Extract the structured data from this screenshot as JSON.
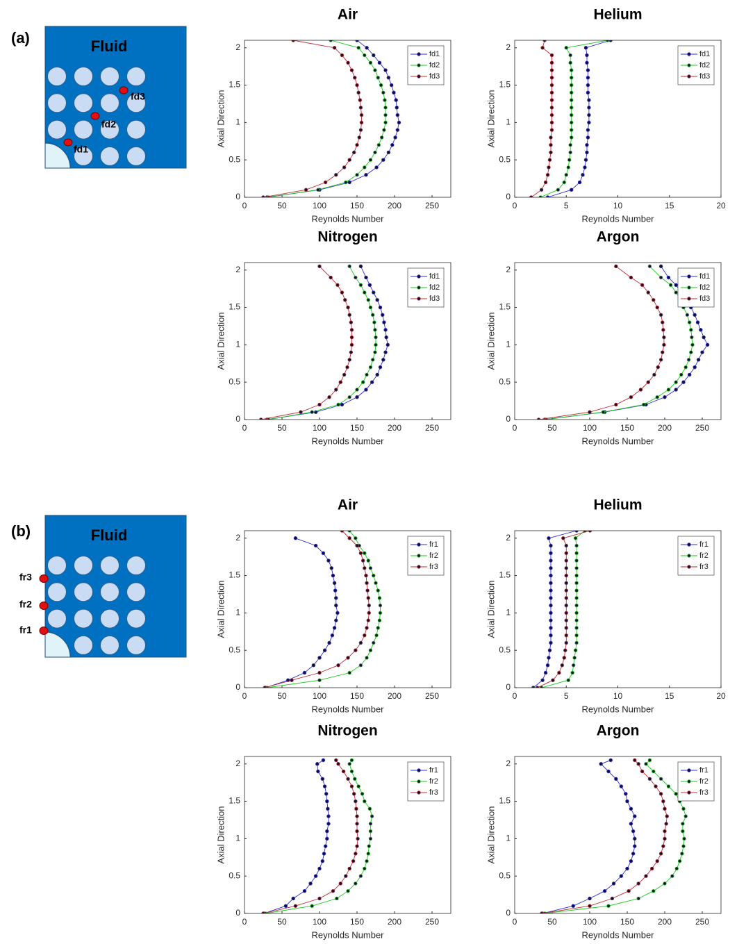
{
  "panels": [
    {
      "label": "(a)",
      "diagram": {
        "title": "Fluid",
        "points": [
          "fd1",
          "fd2",
          "fd3"
        ]
      }
    },
    {
      "label": "(b)",
      "diagram": {
        "title": "Fluid",
        "points": [
          "fr1",
          "fr2",
          "fr3"
        ]
      }
    }
  ],
  "chart_data": [
    {
      "type": "line",
      "title": "Air",
      "xlabel": "Reynolds Number",
      "ylabel": "Axial Direction",
      "y": [
        0,
        0.1,
        0.2,
        0.3,
        0.4,
        0.5,
        0.6,
        0.7,
        0.8,
        0.9,
        1,
        1.1,
        1.2,
        1.3,
        1.4,
        1.5,
        1.6,
        1.7,
        1.8,
        1.9,
        2,
        2.1
      ],
      "series": [
        {
          "name": "fd1",
          "color": "#2b2bd6",
          "values": [
            30,
            100,
            140,
            162,
            176,
            185,
            192,
            197,
            201,
            204,
            206,
            204,
            203,
            202,
            199,
            196,
            192,
            188,
            180,
            172,
            163,
            150
          ]
        },
        {
          "name": "fd2",
          "color": "#19c619",
          "values": [
            32,
            98,
            135,
            150,
            160,
            168,
            174,
            179,
            183,
            186,
            188,
            188,
            188,
            187,
            185,
            182,
            178,
            174,
            168,
            160,
            152,
            115
          ]
        },
        {
          "name": "fd3",
          "color": "#c0282d",
          "values": [
            25,
            82,
            108,
            122,
            133,
            140,
            146,
            150,
            153,
            155,
            156,
            156,
            155,
            154,
            152,
            150,
            147,
            143,
            138,
            130,
            120,
            65
          ]
        }
      ],
      "xlim": [
        0,
        275
      ],
      "xticks": [
        0,
        50,
        100,
        150,
        200,
        250
      ],
      "ylim": [
        0,
        2.1
      ],
      "yticks": [
        0,
        0.5,
        1,
        1.5,
        2
      ],
      "legend": "upper right"
    },
    {
      "type": "line",
      "title": "Helium",
      "xlabel": "Reynolds Number",
      "ylabel": "Axial Direction",
      "y": [
        0,
        0.1,
        0.2,
        0.3,
        0.4,
        0.5,
        0.6,
        0.7,
        0.8,
        0.9,
        1,
        1.1,
        1.2,
        1.3,
        1.4,
        1.5,
        1.6,
        1.7,
        1.8,
        1.9,
        2,
        2.1
      ],
      "series": [
        {
          "name": "fd1",
          "color": "#2b2bd6",
          "values": [
            3.2,
            5.5,
            6.3,
            6.6,
            6.8,
            6.9,
            7.0,
            7.0,
            7.1,
            7.1,
            7.2,
            7.2,
            7.2,
            7.2,
            7.1,
            7.1,
            7.1,
            7.1,
            7.0,
            7.0,
            6.9,
            9.3
          ]
        },
        {
          "name": "fd2",
          "color": "#19c619",
          "values": [
            2.5,
            4.2,
            4.8,
            5.0,
            5.2,
            5.3,
            5.4,
            5.4,
            5.5,
            5.5,
            5.5,
            5.5,
            5.5,
            5.5,
            5.5,
            5.5,
            5.5,
            5.5,
            5.4,
            5.4,
            5.0,
            9.0
          ]
        },
        {
          "name": "fd3",
          "color": "#c0282d",
          "values": [
            1.6,
            2.6,
            3.0,
            3.2,
            3.3,
            3.4,
            3.5,
            3.5,
            3.5,
            3.6,
            3.6,
            3.6,
            3.6,
            3.6,
            3.6,
            3.6,
            3.6,
            3.6,
            3.6,
            3.6,
            2.7,
            2.9
          ]
        }
      ],
      "xlim": [
        0,
        20
      ],
      "xticks": [
        0,
        5,
        10,
        15,
        20
      ],
      "ylim": [
        0,
        2.1
      ],
      "yticks": [
        0,
        0.5,
        1,
        1.5,
        2
      ],
      "legend": "upper right"
    },
    {
      "type": "line",
      "title": "Nitrogen",
      "xlabel": "Reynolds Number",
      "ylabel": "Axial Direction",
      "y": [
        0,
        0.1,
        0.2,
        0.3,
        0.4,
        0.5,
        0.6,
        0.7,
        0.8,
        0.9,
        1,
        1.1,
        1.2,
        1.3,
        1.4,
        1.5,
        1.6,
        1.7,
        1.8,
        1.9,
        2.05
      ],
      "series": [
        {
          "name": "fd1",
          "color": "#2b2bd6",
          "values": [
            30,
            95,
            130,
            150,
            162,
            170,
            177,
            181,
            185,
            188,
            191,
            189,
            188,
            186,
            184,
            181,
            177,
            172,
            167,
            162,
            155
          ]
        },
        {
          "name": "fd2",
          "color": "#19c619",
          "values": [
            32,
            90,
            125,
            140,
            150,
            158,
            163,
            168,
            171,
            174,
            175,
            175,
            174,
            173,
            171,
            168,
            165,
            160,
            155,
            148,
            140
          ]
        },
        {
          "name": "fd3",
          "color": "#c0282d",
          "values": [
            22,
            75,
            100,
            113,
            122,
            128,
            133,
            137,
            140,
            142,
            143,
            143,
            143,
            142,
            140,
            138,
            134,
            130,
            124,
            115,
            100
          ]
        }
      ],
      "xlim": [
        0,
        275
      ],
      "xticks": [
        0,
        50,
        100,
        150,
        200,
        250
      ],
      "ylim": [
        0,
        2.1
      ],
      "yticks": [
        0,
        0.5,
        1,
        1.5,
        2
      ],
      "legend": "upper right"
    },
    {
      "type": "line",
      "title": "Argon",
      "xlabel": "Reynolds Number",
      "ylabel": "Axial Direction",
      "y": [
        0,
        0.1,
        0.2,
        0.3,
        0.4,
        0.5,
        0.6,
        0.7,
        0.8,
        0.9,
        1,
        1.1,
        1.2,
        1.3,
        1.4,
        1.5,
        1.6,
        1.7,
        1.8,
        1.9,
        2.05
      ],
      "series": [
        {
          "name": "fd1",
          "color": "#2b2bd6",
          "values": [
            40,
            120,
            175,
            200,
            215,
            225,
            233,
            240,
            245,
            250,
            257,
            252,
            248,
            244,
            240,
            235,
            228,
            222,
            215,
            205,
            195
          ]
        },
        {
          "name": "fd2",
          "color": "#19c619",
          "values": [
            42,
            118,
            172,
            190,
            205,
            215,
            222,
            228,
            232,
            235,
            237,
            236,
            235,
            233,
            230,
            225,
            222,
            215,
            208,
            195,
            180
          ]
        },
        {
          "name": "fd3",
          "color": "#c0282d",
          "values": [
            32,
            100,
            135,
            155,
            168,
            178,
            186,
            191,
            195,
            197,
            199,
            199,
            198,
            197,
            195,
            190,
            185,
            178,
            170,
            155,
            135
          ]
        }
      ],
      "xlim": [
        0,
        275
      ],
      "xticks": [
        0,
        50,
        100,
        150,
        200,
        250
      ],
      "ylim": [
        0,
        2.1
      ],
      "yticks": [
        0,
        0.5,
        1,
        1.5,
        2
      ],
      "legend": "upper right"
    },
    {
      "type": "line",
      "title": "Air",
      "xlabel": "Reynolds Number",
      "ylabel": "Axial Direction",
      "y": [
        0,
        0.1,
        0.2,
        0.3,
        0.4,
        0.5,
        0.6,
        0.7,
        0.8,
        0.9,
        1,
        1.1,
        1.2,
        1.3,
        1.4,
        1.5,
        1.6,
        1.7,
        1.8,
        1.9,
        2,
        2.1
      ],
      "series": [
        {
          "name": "fr1",
          "color": "#2b2bd6",
          "values": [
            28,
            58,
            80,
            92,
            100,
            107,
            113,
            117,
            120,
            122,
            124,
            122,
            122,
            121,
            120,
            118,
            116,
            112,
            105,
            95,
            68,
            null
          ]
        },
        {
          "name": "fr2",
          "color": "#19c619",
          "values": [
            30,
            100,
            140,
            155,
            163,
            168,
            172,
            176,
            178,
            180,
            181,
            181,
            180,
            178,
            175,
            172,
            168,
            165,
            160,
            153,
            148,
            140
          ]
        },
        {
          "name": "fr3",
          "color": "#c0282d",
          "values": [
            27,
            63,
            100,
            125,
            138,
            148,
            155,
            160,
            163,
            165,
            166,
            166,
            165,
            164,
            163,
            162,
            160,
            158,
            155,
            150,
            140,
            130
          ]
        }
      ],
      "xlim": [
        0,
        275
      ],
      "xticks": [
        0,
        50,
        100,
        150,
        200,
        250
      ],
      "ylim": [
        0,
        2.1
      ],
      "yticks": [
        0,
        0.5,
        1,
        1.5,
        2
      ],
      "legend": "upper right"
    },
    {
      "type": "line",
      "title": "Helium",
      "xlabel": "Reynolds Number",
      "ylabel": "Axial Direction",
      "y": [
        0,
        0.1,
        0.2,
        0.3,
        0.4,
        0.5,
        0.6,
        0.7,
        0.8,
        0.9,
        1,
        1.1,
        1.2,
        1.3,
        1.4,
        1.5,
        1.6,
        1.7,
        1.8,
        1.9,
        2,
        2.1
      ],
      "series": [
        {
          "name": "fr1",
          "color": "#2b2bd6",
          "values": [
            1.8,
            2.7,
            3.0,
            3.2,
            3.3,
            3.4,
            3.5,
            3.5,
            3.5,
            3.5,
            3.5,
            3.5,
            3.5,
            3.5,
            3.5,
            3.5,
            3.5,
            3.5,
            3.5,
            3.5,
            3.3,
            6.0
          ]
        },
        {
          "name": "fr2",
          "color": "#19c619",
          "values": [
            2.6,
            5.2,
            5.6,
            5.7,
            5.8,
            5.9,
            6.0,
            6.0,
            6.0,
            6.0,
            6.0,
            6.0,
            6.0,
            6.0,
            6.0,
            6.0,
            6.0,
            6.0,
            6.0,
            6.0,
            5.9,
            6.8
          ]
        },
        {
          "name": "fr3",
          "color": "#c0282d",
          "values": [
            2.2,
            3.7,
            4.3,
            4.6,
            4.8,
            4.9,
            5.0,
            5.0,
            5.0,
            5.0,
            5.0,
            5.0,
            5.0,
            5.0,
            5.0,
            5.0,
            5.0,
            5.0,
            5.0,
            5.0,
            4.7,
            7.3
          ]
        }
      ],
      "xlim": [
        0,
        20
      ],
      "xticks": [
        0,
        5,
        10,
        15,
        20
      ],
      "ylim": [
        0,
        2.1
      ],
      "yticks": [
        0,
        0.5,
        1,
        1.5,
        2
      ],
      "legend": "upper right"
    },
    {
      "type": "line",
      "title": "Nitrogen",
      "xlabel": "Reynolds Number",
      "ylabel": "Axial Direction",
      "y": [
        0,
        0.1,
        0.2,
        0.3,
        0.4,
        0.5,
        0.6,
        0.7,
        0.8,
        0.9,
        1,
        1.1,
        1.2,
        1.3,
        1.4,
        1.5,
        1.6,
        1.7,
        1.8,
        1.9,
        2,
        2.05
      ],
      "series": [
        {
          "name": "fr1",
          "color": "#2b2bd6",
          "values": [
            26,
            55,
            65,
            80,
            88,
            95,
            100,
            104,
            106,
            108,
            110,
            110,
            112,
            112,
            111,
            110,
            109,
            107,
            104,
            98,
            97,
            105
          ]
        },
        {
          "name": "fr2",
          "color": "#19c619",
          "values": [
            28,
            90,
            123,
            138,
            148,
            155,
            160,
            163,
            165,
            166,
            168,
            168,
            168,
            170,
            167,
            160,
            157,
            152,
            147,
            143,
            140,
            143
          ]
        },
        {
          "name": "fr3",
          "color": "#c0282d",
          "values": [
            25,
            68,
            100,
            118,
            128,
            135,
            140,
            145,
            148,
            150,
            151,
            150,
            150,
            150,
            149,
            148,
            146,
            143,
            138,
            132,
            125,
            122
          ]
        }
      ],
      "xlim": [
        0,
        275
      ],
      "xticks": [
        0,
        50,
        100,
        150,
        200,
        250
      ],
      "ylim": [
        0,
        2.1
      ],
      "yticks": [
        0,
        0.5,
        1,
        1.5,
        2
      ],
      "legend": "upper right"
    },
    {
      "type": "line",
      "title": "Argon",
      "xlabel": "Reynolds Number",
      "ylabel": "Axial Direction",
      "y": [
        0,
        0.1,
        0.2,
        0.3,
        0.4,
        0.5,
        0.6,
        0.7,
        0.8,
        0.9,
        1,
        1.1,
        1.2,
        1.3,
        1.4,
        1.5,
        1.6,
        1.7,
        1.8,
        1.9,
        2,
        2.05
      ],
      "series": [
        {
          "name": "fr1",
          "color": "#2b2bd6",
          "values": [
            37,
            78,
            100,
            120,
            132,
            142,
            150,
            155,
            158,
            160,
            160,
            158,
            155,
            160,
            155,
            150,
            148,
            142,
            135,
            125,
            115,
            128
          ]
        },
        {
          "name": "fr2",
          "color": "#19c619",
          "values": [
            40,
            125,
            165,
            185,
            200,
            210,
            216,
            220,
            223,
            225,
            226,
            224,
            224,
            228,
            225,
            220,
            215,
            205,
            195,
            185,
            175,
            180
          ]
        },
        {
          "name": "fr3",
          "color": "#c0282d",
          "values": [
            36,
            100,
            130,
            152,
            165,
            175,
            183,
            190,
            195,
            198,
            200,
            200,
            202,
            203,
            200,
            198,
            195,
            188,
            180,
            170,
            165,
            160
          ]
        }
      ],
      "xlim": [
        0,
        275
      ],
      "xticks": [
        0,
        50,
        100,
        150,
        200,
        250
      ],
      "ylim": [
        0,
        2.1
      ],
      "yticks": [
        0,
        0.5,
        1,
        1.5,
        2
      ],
      "legend": "upper right"
    }
  ]
}
